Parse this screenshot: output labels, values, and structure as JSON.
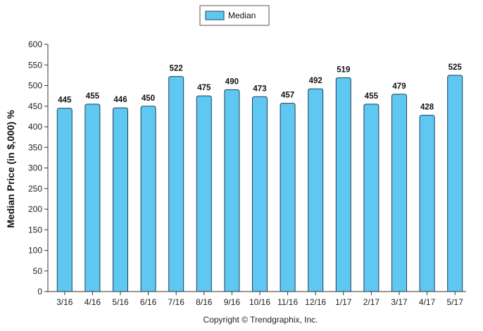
{
  "chart_data": {
    "type": "bar",
    "categories": [
      "3/16",
      "4/16",
      "5/16",
      "6/16",
      "7/16",
      "8/16",
      "9/16",
      "10/16",
      "11/16",
      "12/16",
      "1/17",
      "2/17",
      "3/17",
      "4/17",
      "5/17"
    ],
    "series": [
      {
        "name": "Median",
        "values": [
          445,
          455,
          446,
          450,
          522,
          475,
          490,
          473,
          457,
          492,
          519,
          455,
          479,
          428,
          525
        ]
      }
    ],
    "ylabel": "Median Price (in $,000) %",
    "xlabel": "",
    "ylim": [
      0,
      600
    ],
    "yticks": [
      0,
      50,
      100,
      150,
      200,
      250,
      300,
      350,
      400,
      450,
      500,
      550,
      600
    ],
    "grid": false,
    "legend_position": "top-center",
    "data_labels": true,
    "colors": {
      "bar_fill": "#5ec8f3",
      "bar_stroke": "#1f3f55",
      "axis": "#333333"
    }
  },
  "footer": {
    "copyright": "Copyright © Trendgraphix, Inc."
  }
}
